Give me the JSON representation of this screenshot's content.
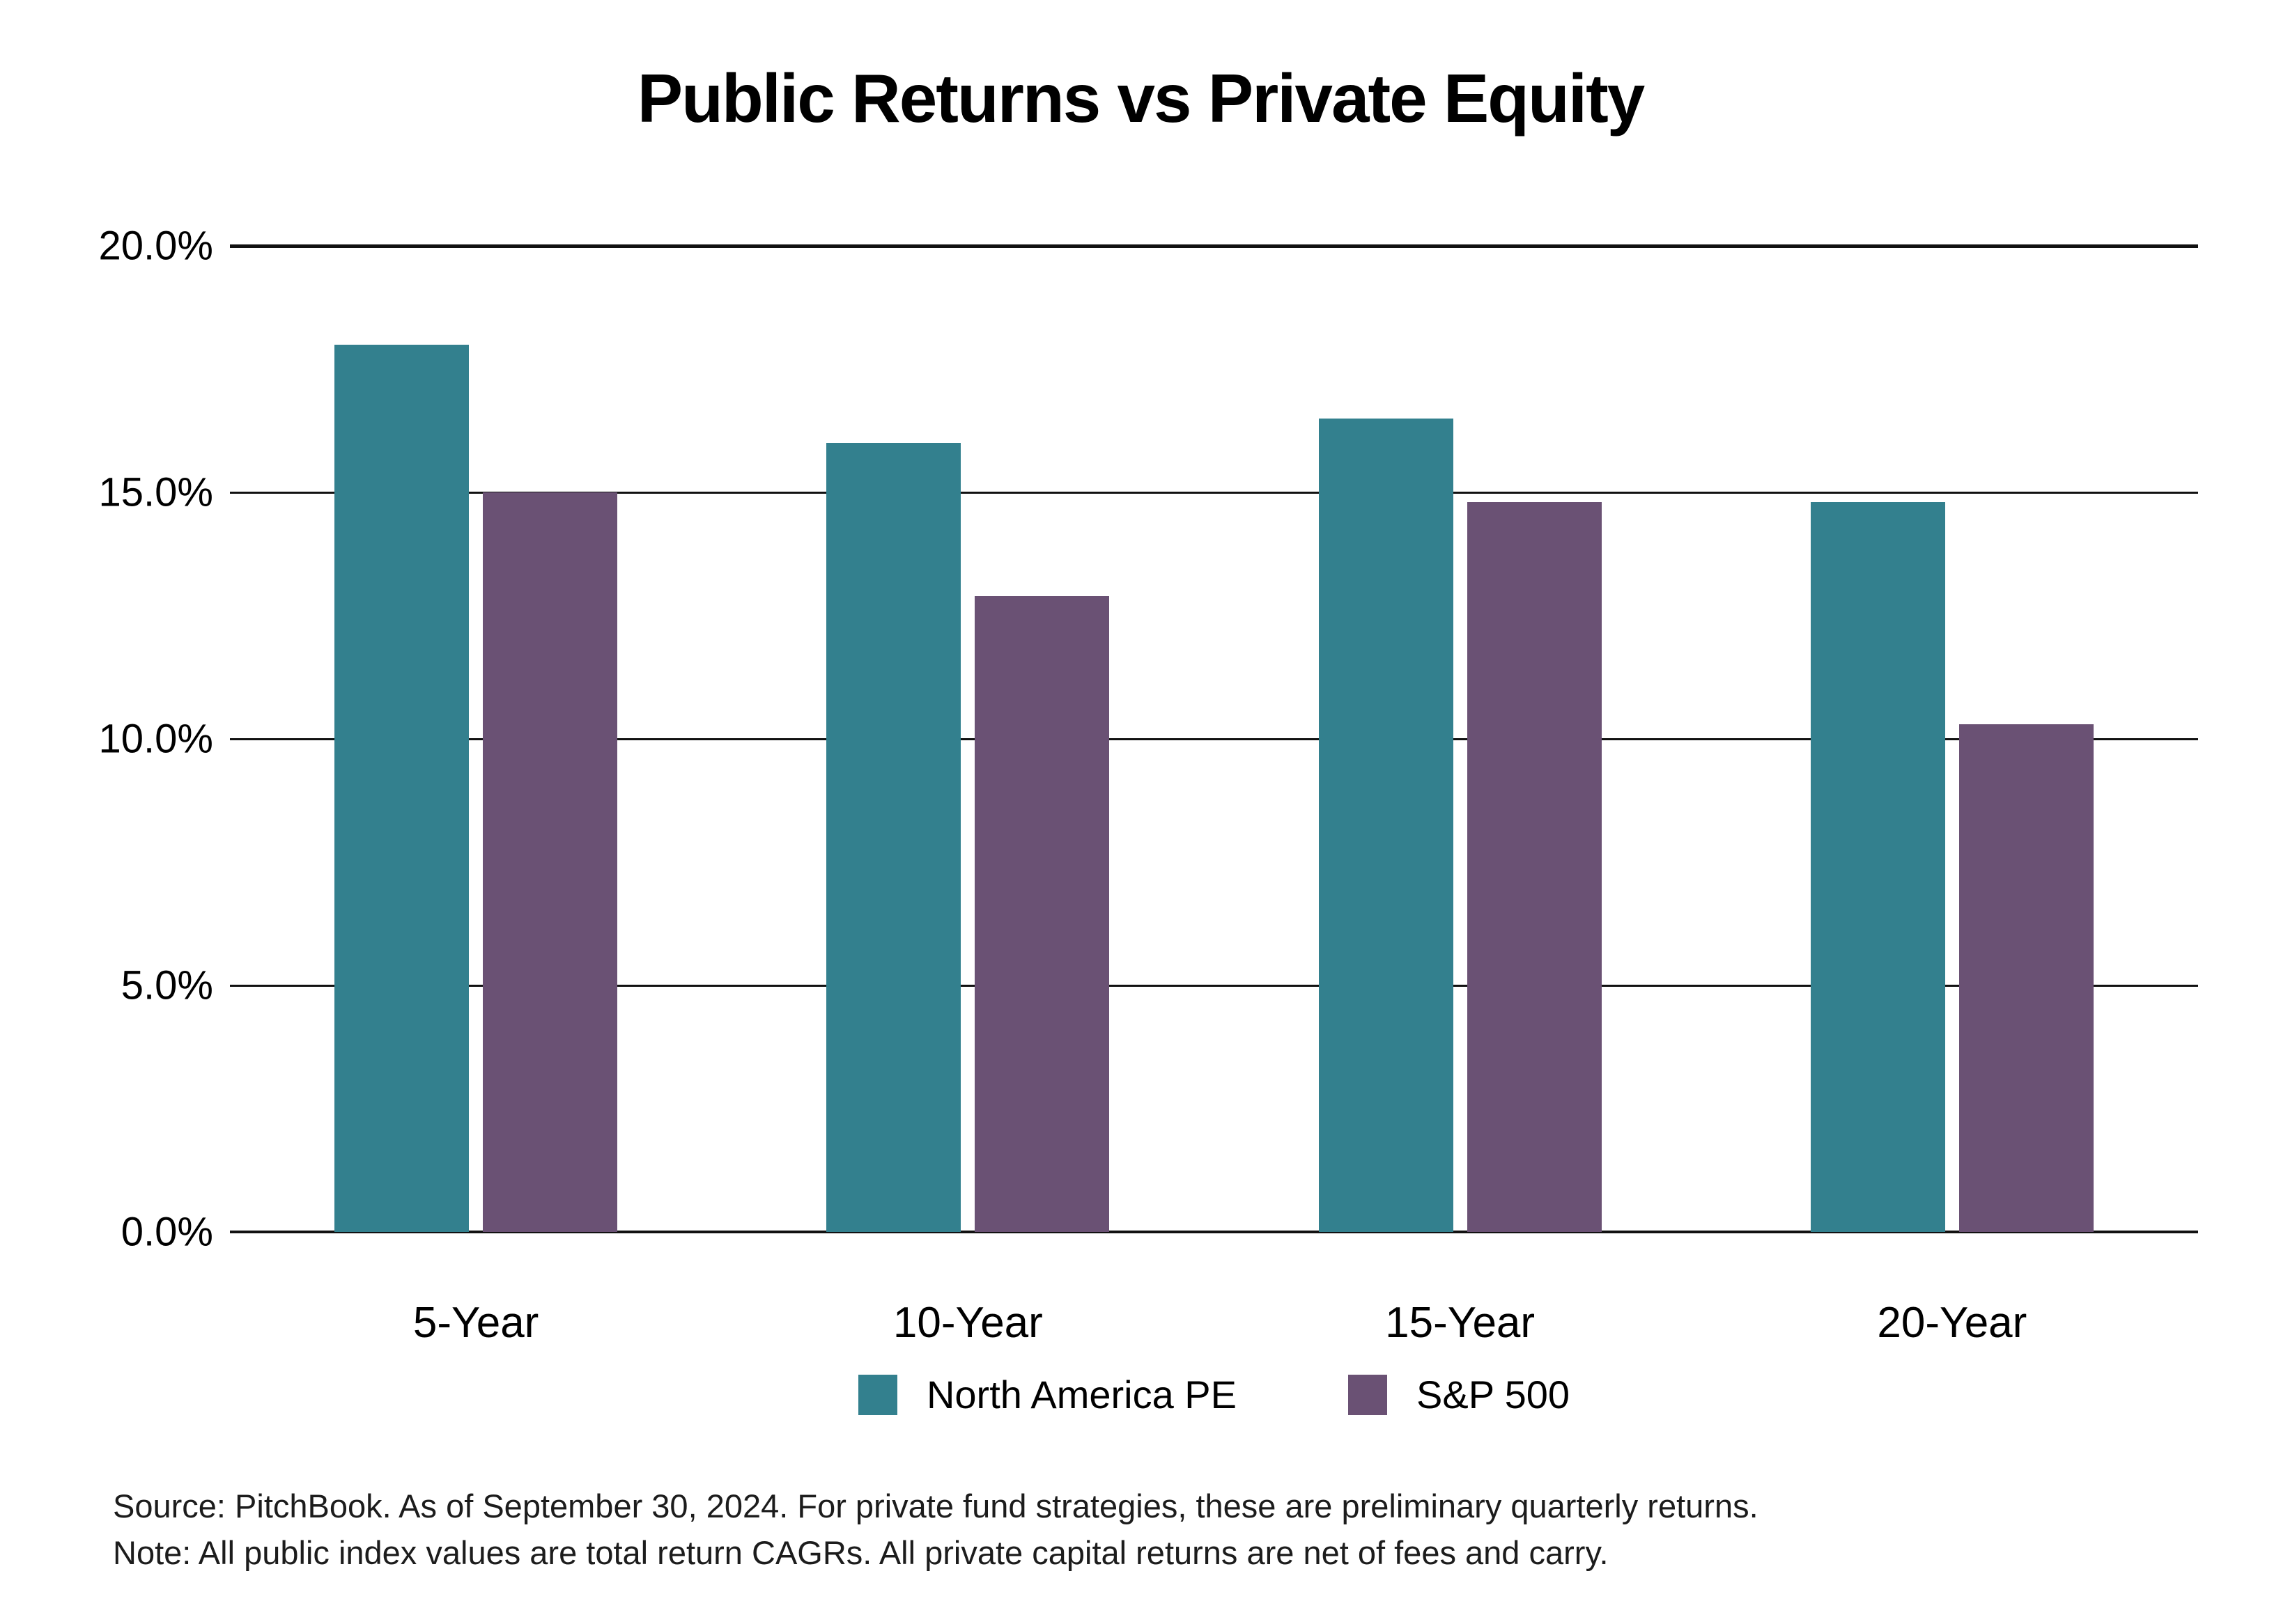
{
  "title": "Public Returns vs Private Equity",
  "chart_data": {
    "type": "bar",
    "title": "Public Returns vs Private Equity",
    "categories": [
      "5-Year",
      "10-Year",
      "15-Year",
      "20-Year"
    ],
    "series": [
      {
        "name": "North America PE",
        "color": "#33808E",
        "values": [
          18.0,
          16.0,
          16.5,
          14.8
        ]
      },
      {
        "name": "S&P 500",
        "color": "#6A5174",
        "values": [
          15.0,
          12.9,
          14.8,
          10.3
        ]
      }
    ],
    "ylim": [
      0,
      20
    ],
    "yticks": [
      0,
      5,
      10,
      15,
      20
    ],
    "ytick_labels": [
      "0.0%",
      "5.0%",
      "10.0%",
      "15.0%",
      "20.0%"
    ],
    "grid": "horizontal",
    "legend_position": "bottom"
  },
  "footer": {
    "source_line": "Source: PitchBook. As of September 30, 2024. For private fund strategies, these are preliminary quarterly returns.",
    "note_line": "Note: All public index values are total return CAGRs. All private capital returns are net of fees and carry."
  }
}
